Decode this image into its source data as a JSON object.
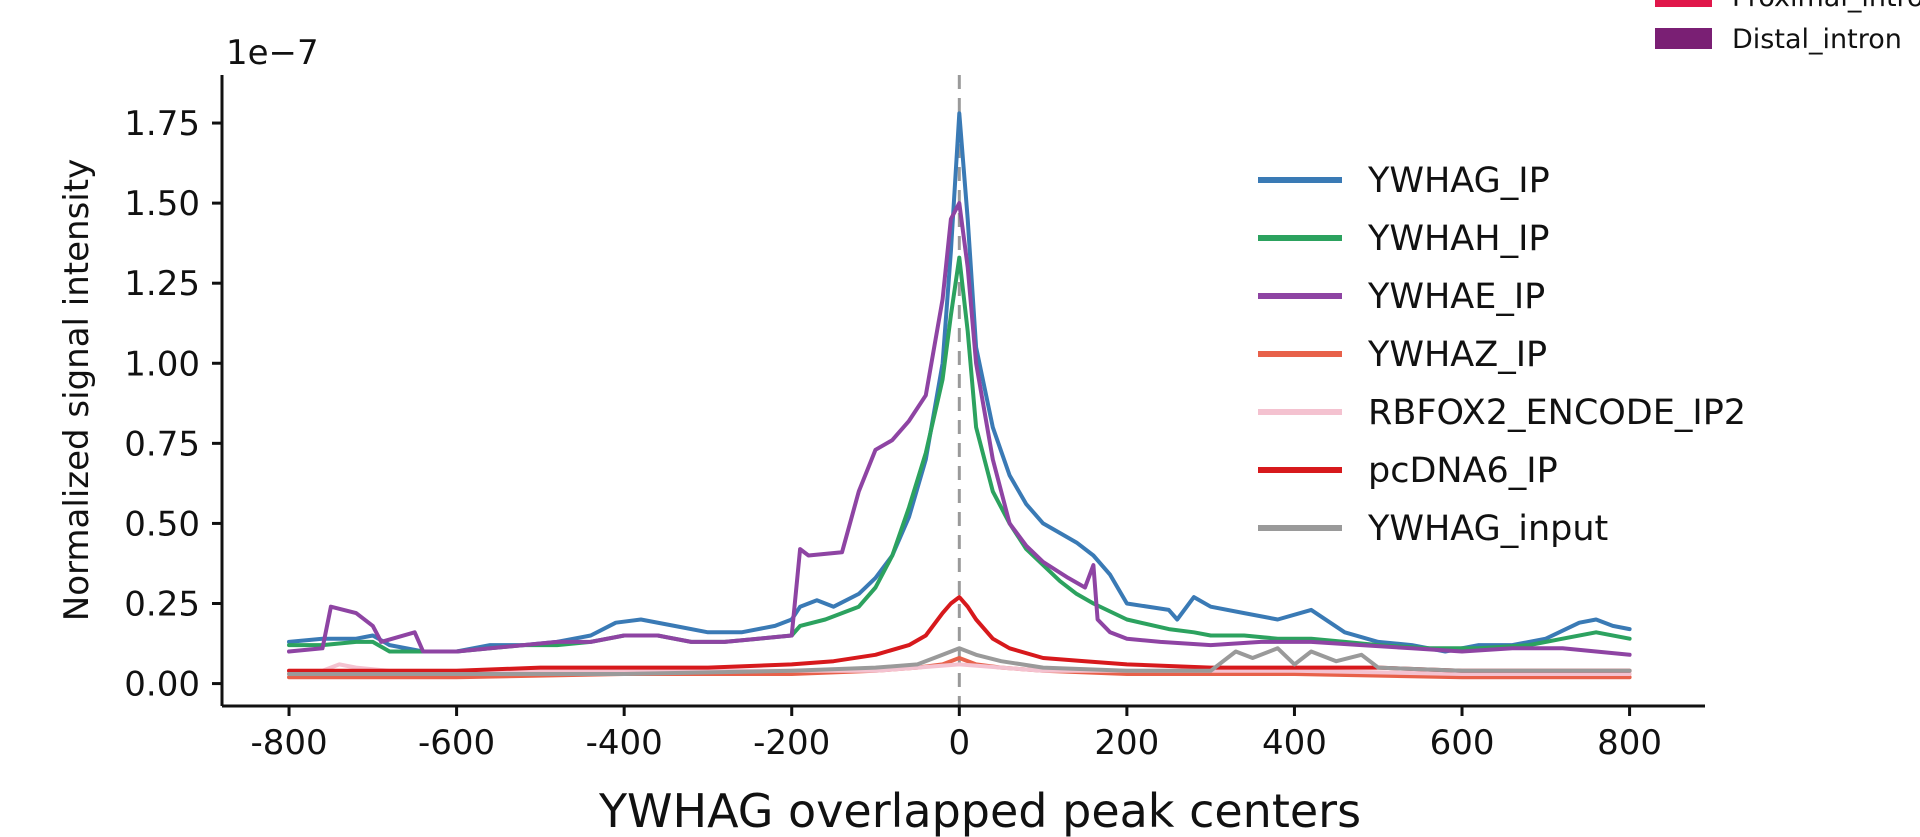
{
  "chart_data": {
    "type": "line",
    "xlabel": "YWHAG overlapped peak centers",
    "ylabel": "Normalized signal intensity",
    "scale_label": "1e−7",
    "xlim": [
      -880,
      890
    ],
    "ylim": [
      -0.07,
      1.9
    ],
    "x_ticks": [
      -800,
      -600,
      -400,
      -200,
      0,
      200,
      400,
      600,
      800
    ],
    "x_tick_labels": [
      "-800",
      "-600",
      "-400",
      "-200",
      "0",
      "200",
      "400",
      "600",
      "800"
    ],
    "y_ticks": [
      0.0,
      0.25,
      0.5,
      0.75,
      1.0,
      1.25,
      1.5,
      1.75
    ],
    "y_tick_labels": [
      "0.00",
      "0.25",
      "0.50",
      "0.75",
      "1.00",
      "1.25",
      "1.50",
      "1.75"
    ],
    "center_line": 0,
    "legend_position": "right",
    "series": [
      {
        "name": "YWHAG_IP",
        "color": "#3a7ab5",
        "x": [
          -800,
          -760,
          -720,
          -700,
          -680,
          -640,
          -600,
          -560,
          -520,
          -480,
          -440,
          -410,
          -380,
          -340,
          -300,
          -260,
          -220,
          -200,
          -190,
          -170,
          -150,
          -120,
          -100,
          -80,
          -60,
          -40,
          -20,
          -10,
          0,
          10,
          20,
          40,
          60,
          80,
          100,
          120,
          140,
          160,
          180,
          200,
          250,
          260,
          280,
          300,
          340,
          380,
          420,
          460,
          500,
          540,
          580,
          620,
          660,
          700,
          740,
          760,
          780,
          800
        ],
        "y": [
          0.13,
          0.14,
          0.14,
          0.15,
          0.12,
          0.1,
          0.1,
          0.12,
          0.12,
          0.13,
          0.15,
          0.19,
          0.2,
          0.18,
          0.16,
          0.16,
          0.18,
          0.2,
          0.24,
          0.26,
          0.24,
          0.28,
          0.33,
          0.4,
          0.52,
          0.7,
          1.0,
          1.35,
          1.78,
          1.45,
          1.05,
          0.8,
          0.65,
          0.56,
          0.5,
          0.47,
          0.44,
          0.4,
          0.34,
          0.25,
          0.23,
          0.2,
          0.27,
          0.24,
          0.22,
          0.2,
          0.23,
          0.16,
          0.13,
          0.12,
          0.1,
          0.12,
          0.12,
          0.14,
          0.19,
          0.2,
          0.18,
          0.17
        ]
      },
      {
        "name": "YWHAH_IP",
        "color": "#2ca25f",
        "x": [
          -800,
          -760,
          -720,
          -700,
          -680,
          -640,
          -600,
          -560,
          -520,
          -480,
          -440,
          -400,
          -360,
          -320,
          -280,
          -240,
          -200,
          -190,
          -160,
          -120,
          -100,
          -80,
          -60,
          -40,
          -20,
          -10,
          0,
          10,
          20,
          40,
          60,
          80,
          100,
          120,
          140,
          160,
          200,
          250,
          280,
          300,
          340,
          380,
          420,
          460,
          500,
          560,
          620,
          680,
          720,
          760,
          800
        ],
        "y": [
          0.12,
          0.12,
          0.13,
          0.13,
          0.1,
          0.1,
          0.1,
          0.11,
          0.12,
          0.12,
          0.13,
          0.15,
          0.15,
          0.13,
          0.13,
          0.14,
          0.15,
          0.18,
          0.2,
          0.24,
          0.3,
          0.4,
          0.55,
          0.72,
          0.95,
          1.15,
          1.33,
          1.1,
          0.8,
          0.6,
          0.5,
          0.42,
          0.37,
          0.32,
          0.28,
          0.25,
          0.2,
          0.17,
          0.16,
          0.15,
          0.15,
          0.14,
          0.14,
          0.13,
          0.12,
          0.11,
          0.11,
          0.12,
          0.14,
          0.16,
          0.14
        ]
      },
      {
        "name": "YWHAE_IP",
        "color": "#8e44a3",
        "x": [
          -800,
          -760,
          -750,
          -720,
          -700,
          -690,
          -650,
          -640,
          -600,
          -560,
          -520,
          -480,
          -440,
          -400,
          -360,
          -320,
          -280,
          -240,
          -200,
          -190,
          -180,
          -140,
          -120,
          -100,
          -80,
          -60,
          -40,
          -20,
          -10,
          0,
          10,
          20,
          40,
          60,
          80,
          100,
          130,
          150,
          160,
          165,
          180,
          200,
          240,
          300,
          360,
          420,
          480,
          540,
          600,
          660,
          720,
          760,
          800
        ],
        "y": [
          0.1,
          0.11,
          0.24,
          0.22,
          0.18,
          0.13,
          0.16,
          0.1,
          0.1,
          0.11,
          0.12,
          0.13,
          0.13,
          0.15,
          0.15,
          0.13,
          0.13,
          0.14,
          0.15,
          0.42,
          0.4,
          0.41,
          0.6,
          0.73,
          0.76,
          0.82,
          0.9,
          1.2,
          1.45,
          1.5,
          1.3,
          1.0,
          0.7,
          0.5,
          0.43,
          0.38,
          0.33,
          0.3,
          0.37,
          0.2,
          0.16,
          0.14,
          0.13,
          0.12,
          0.13,
          0.13,
          0.12,
          0.11,
          0.1,
          0.11,
          0.11,
          0.1,
          0.09
        ]
      },
      {
        "name": "YWHAZ_IP",
        "color": "#e8614a",
        "x": [
          -800,
          -600,
          -400,
          -200,
          -100,
          -50,
          -20,
          0,
          20,
          50,
          100,
          200,
          400,
          600,
          800
        ],
        "y": [
          0.02,
          0.02,
          0.03,
          0.03,
          0.04,
          0.05,
          0.06,
          0.08,
          0.06,
          0.05,
          0.04,
          0.03,
          0.03,
          0.02,
          0.02
        ]
      },
      {
        "name": "RBFOX2_ENCODE_IP2",
        "color": "#f4c2d0",
        "x": [
          -800,
          -760,
          -740,
          -720,
          -680,
          -600,
          -400,
          -200,
          -100,
          -50,
          0,
          50,
          100,
          200,
          400,
          600,
          800
        ],
        "y": [
          0.04,
          0.04,
          0.06,
          0.05,
          0.04,
          0.04,
          0.04,
          0.04,
          0.04,
          0.05,
          0.06,
          0.05,
          0.04,
          0.04,
          0.04,
          0.03,
          0.03
        ]
      },
      {
        "name": "pcDNA6_IP",
        "color": "#d7191c",
        "x": [
          -800,
          -700,
          -600,
          -500,
          -400,
          -300,
          -200,
          -150,
          -100,
          -60,
          -40,
          -20,
          -10,
          0,
          10,
          20,
          40,
          60,
          100,
          150,
          200,
          300,
          400,
          500,
          600,
          700,
          800
        ],
        "y": [
          0.04,
          0.04,
          0.04,
          0.05,
          0.05,
          0.05,
          0.06,
          0.07,
          0.09,
          0.12,
          0.15,
          0.22,
          0.25,
          0.27,
          0.24,
          0.2,
          0.14,
          0.11,
          0.08,
          0.07,
          0.06,
          0.05,
          0.05,
          0.05,
          0.04,
          0.04,
          0.04
        ]
      },
      {
        "name": "YWHAG_input",
        "color": "#9a9a9a",
        "x": [
          -800,
          -600,
          -400,
          -200,
          -100,
          -50,
          -20,
          0,
          20,
          50,
          100,
          200,
          300,
          330,
          350,
          380,
          400,
          420,
          450,
          480,
          500,
          600,
          800
        ],
        "y": [
          0.03,
          0.03,
          0.03,
          0.04,
          0.05,
          0.06,
          0.09,
          0.11,
          0.09,
          0.07,
          0.05,
          0.04,
          0.04,
          0.1,
          0.08,
          0.11,
          0.06,
          0.1,
          0.07,
          0.09,
          0.05,
          0.04,
          0.04
        ]
      }
    ]
  },
  "legend2": {
    "items": [
      {
        "name": "Proximal_intron",
        "color": "#e0174a"
      },
      {
        "name": "Distal_intron",
        "color": "#7a1f74"
      }
    ]
  }
}
